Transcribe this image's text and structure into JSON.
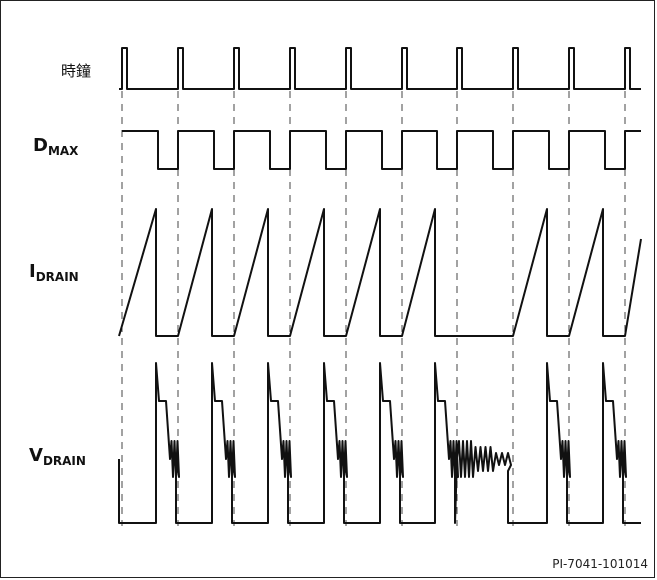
{
  "labels": {
    "clock": "時鐘",
    "dmax_main": "D",
    "dmax_sub": "MAX",
    "idrain_main": "I",
    "idrain_sub": "DRAIN",
    "vdrain_main": "V",
    "vdrain_sub": "DRAIN"
  },
  "figure_id": "PI-7041-101014",
  "colors": {
    "trace": "#111111",
    "guide": "#444444"
  }
}
